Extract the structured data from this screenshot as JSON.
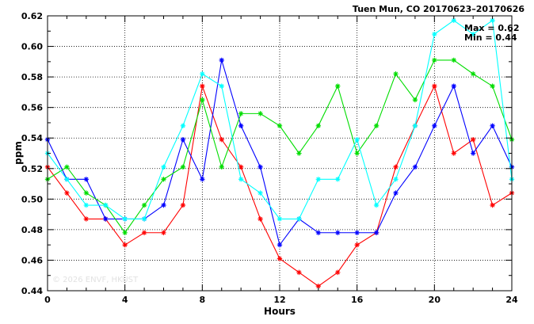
{
  "header": {
    "title": "Tuen Mun, CO 20170623–20170626"
  },
  "stats": {
    "max_label": "Max = 0.62",
    "min_label": "Min = 0.44"
  },
  "watermark": "© 2026 ENVF, HKUST",
  "chart_data": {
    "type": "line",
    "xlabel": "Hours",
    "ylabel": "ppm",
    "xlim": [
      0,
      24
    ],
    "ylim": [
      0.44,
      0.62
    ],
    "xticks": [
      0,
      4,
      8,
      12,
      16,
      20,
      24
    ],
    "yticks": [
      0.44,
      0.46,
      0.48,
      0.5,
      0.52,
      0.54,
      0.56,
      0.58,
      0.6,
      0.62
    ],
    "grid": true,
    "x": [
      0,
      1,
      2,
      3,
      4,
      5,
      6,
      7,
      8,
      9,
      10,
      11,
      12,
      13,
      14,
      15,
      16,
      17,
      18,
      19,
      20,
      21,
      22,
      23,
      24
    ],
    "series": [
      {
        "color": "#ff0000",
        "values": [
          0.521,
          0.504,
          0.487,
          0.487,
          0.47,
          0.478,
          0.478,
          0.496,
          0.574,
          0.539,
          0.521,
          0.487,
          0.461,
          0.452,
          0.443,
          0.452,
          0.47,
          0.478,
          0.521,
          0.548,
          0.574,
          0.53,
          0.539,
          0.496,
          0.504
        ]
      },
      {
        "color": "#0000ff",
        "values": [
          0.539,
          0.513,
          0.513,
          0.487,
          0.487,
          0.487,
          0.496,
          0.539,
          0.513,
          0.591,
          0.548,
          0.521,
          0.47,
          0.487,
          0.478,
          0.478,
          0.478,
          0.478,
          0.504,
          0.521,
          0.548,
          0.574,
          0.53,
          0.548,
          0.521
        ]
      },
      {
        "color": "#00dd00",
        "values": [
          0.513,
          0.521,
          0.504,
          0.496,
          0.478,
          0.496,
          0.513,
          0.521,
          0.565,
          0.521,
          0.556,
          0.556,
          0.548,
          0.53,
          0.548,
          0.574,
          0.53,
          0.548,
          0.582,
          0.565,
          0.591,
          0.591,
          0.582,
          0.574,
          0.539
        ]
      },
      {
        "color": "#00ffff",
        "values": [
          0.53,
          0.513,
          0.496,
          0.496,
          0.487,
          0.487,
          0.521,
          0.548,
          0.582,
          0.574,
          0.513,
          0.504,
          0.487,
          0.487,
          0.513,
          0.513,
          0.539,
          0.496,
          0.513,
          0.548,
          0.608,
          0.617,
          0.608,
          0.617,
          0.513
        ]
      }
    ]
  }
}
